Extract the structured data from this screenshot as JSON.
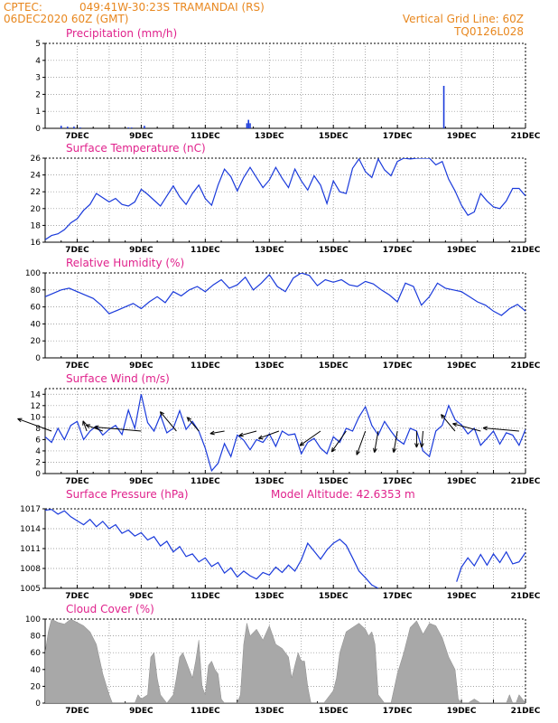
{
  "header": {
    "source": "CPTEC:",
    "location": "049:41W-30:23S   TRAMANDAI (RS)",
    "run": "06DEC2020 60Z (GMT)",
    "grid_note": "Vertical Grid Line: 60Z",
    "model_code": "TQ0126L028"
  },
  "colors": {
    "header": "#e8871e",
    "panel_title": "#e0228c",
    "line": "#1a3adb",
    "cloud": "#a8a8a8"
  },
  "x_tick_labels": [
    "7DEC",
    "9DEC",
    "11DEC",
    "13DEC",
    "15DEC",
    "17DEC",
    "19DEC",
    "21DEC"
  ],
  "chart_data": [
    {
      "id": "precip",
      "type": "bar",
      "title": "Precipitation (mm/h)",
      "ylim": [
        0,
        5
      ],
      "yticks": [
        0,
        1,
        2,
        3,
        4,
        5
      ],
      "x": [
        6.5,
        6.7,
        6.9,
        7.1,
        8.6,
        8.7,
        9.1,
        12.3,
        12.35,
        12.4,
        18.45
      ],
      "values": [
        0.15,
        0.1,
        0.1,
        0.05,
        0.05,
        0.05,
        0.15,
        0.3,
        0.5,
        0.3,
        2.5
      ]
    },
    {
      "id": "temp",
      "type": "line",
      "title": "Surface Temperature (nC)",
      "ylim": [
        16,
        26
      ],
      "yticks": [
        16,
        18,
        20,
        22,
        24,
        26
      ],
      "x": [
        6.0,
        6.2,
        6.4,
        6.6,
        6.8,
        7.0,
        7.2,
        7.4,
        7.6,
        7.8,
        8.0,
        8.2,
        8.4,
        8.6,
        8.8,
        9.0,
        9.2,
        9.4,
        9.6,
        9.8,
        10.0,
        10.2,
        10.4,
        10.6,
        10.8,
        11.0,
        11.2,
        11.4,
        11.6,
        11.8,
        12.0,
        12.2,
        12.4,
        12.6,
        12.8,
        13.0,
        13.2,
        13.4,
        13.6,
        13.8,
        14.0,
        14.2,
        14.4,
        14.6,
        14.8,
        15.0,
        15.2,
        15.4,
        15.6,
        15.8,
        16.0,
        16.2,
        16.4,
        16.6,
        16.8,
        17.0,
        17.2,
        17.4,
        17.6,
        17.8,
        18.0,
        18.2,
        18.4,
        18.6,
        18.8,
        19.0,
        19.2,
        19.4,
        19.6,
        19.8,
        20.0,
        20.2,
        20.4,
        20.6,
        20.8,
        21.0
      ],
      "y": [
        16.3,
        16.8,
        17.0,
        17.5,
        18.3,
        18.8,
        19.8,
        20.5,
        21.8,
        21.3,
        20.8,
        21.2,
        20.5,
        20.3,
        20.8,
        22.3,
        21.7,
        21.0,
        20.3,
        21.5,
        22.7,
        21.4,
        20.5,
        21.8,
        22.8,
        21.2,
        20.4,
        22.8,
        24.7,
        23.8,
        22.1,
        23.7,
        24.9,
        23.7,
        22.5,
        23.4,
        24.9,
        23.6,
        22.5,
        24.7,
        23.3,
        22.2,
        23.9,
        22.8,
        20.6,
        23.3,
        22.0,
        21.8,
        24.8,
        25.9,
        24.4,
        23.7,
        25.9,
        24.6,
        23.9,
        25.6,
        26.0,
        25.9,
        26.0,
        26.0,
        26.0,
        25.2,
        25.6,
        23.5,
        22.1,
        20.4,
        19.2,
        19.6,
        21.8,
        20.9,
        20.2,
        20.0,
        20.9,
        22.4,
        22.4,
        21.5
      ]
    },
    {
      "id": "rh",
      "type": "line",
      "title": "Relative Humidity (%)",
      "ylim": [
        0,
        100
      ],
      "yticks": [
        0,
        20,
        40,
        60,
        80,
        100
      ],
      "x": [
        6.0,
        6.25,
        6.5,
        6.75,
        7.0,
        7.25,
        7.5,
        7.75,
        8.0,
        8.25,
        8.5,
        8.75,
        9.0,
        9.25,
        9.5,
        9.75,
        10.0,
        10.25,
        10.5,
        10.75,
        11.0,
        11.25,
        11.5,
        11.75,
        12.0,
        12.25,
        12.5,
        12.75,
        13.0,
        13.25,
        13.5,
        13.75,
        14.0,
        14.25,
        14.5,
        14.75,
        15.0,
        15.25,
        15.5,
        15.75,
        16.0,
        16.25,
        16.5,
        16.75,
        17.0,
        17.25,
        17.5,
        17.75,
        18.0,
        18.25,
        18.5,
        18.75,
        19.0,
        19.25,
        19.5,
        19.75,
        20.0,
        20.25,
        20.5,
        20.75,
        21.0
      ],
      "y": [
        72,
        76,
        80,
        82,
        78,
        74,
        70,
        62,
        52,
        56,
        60,
        64,
        58,
        66,
        72,
        65,
        78,
        73,
        80,
        84,
        78,
        86,
        92,
        82,
        86,
        95,
        80,
        88,
        98,
        84,
        78,
        94,
        100,
        97,
        85,
        92,
        89,
        92,
        86,
        84,
        90,
        87,
        80,
        74,
        66,
        88,
        84,
        62,
        72,
        88,
        82,
        80,
        78,
        72,
        66,
        62,
        55,
        50,
        58,
        63,
        55
      ]
    },
    {
      "id": "wind",
      "type": "line",
      "title": "Surface Wind (m/s)",
      "ylim": [
        0,
        15
      ],
      "yticks": [
        0,
        2,
        4,
        6,
        8,
        10,
        12,
        14
      ],
      "x": [
        6.0,
        6.2,
        6.4,
        6.6,
        6.8,
        7.0,
        7.2,
        7.4,
        7.6,
        7.8,
        8.0,
        8.2,
        8.4,
        8.6,
        8.8,
        9.0,
        9.2,
        9.4,
        9.6,
        9.8,
        10.0,
        10.2,
        10.4,
        10.6,
        10.8,
        11.0,
        11.2,
        11.4,
        11.6,
        11.8,
        12.0,
        12.2,
        12.4,
        12.6,
        12.8,
        13.0,
        13.2,
        13.4,
        13.6,
        13.8,
        14.0,
        14.2,
        14.4,
        14.6,
        14.8,
        15.0,
        15.2,
        15.4,
        15.6,
        15.8,
        16.0,
        16.2,
        16.4,
        16.6,
        16.8,
        17.0,
        17.2,
        17.4,
        17.6,
        17.8,
        18.0,
        18.2,
        18.4,
        18.6,
        18.8,
        19.0,
        19.2,
        19.4,
        19.6,
        19.8,
        20.0,
        20.2,
        20.4,
        20.6,
        20.8,
        21.0
      ],
      "y": [
        6.5,
        5.5,
        8.0,
        6.0,
        8.5,
        9.2,
        6.0,
        7.5,
        8.4,
        6.8,
        7.8,
        8.5,
        6.9,
        11.2,
        8.0,
        14.0,
        9.0,
        7.5,
        10.3,
        7.2,
        8.0,
        11.1,
        7.8,
        9.2,
        7.5,
        4.5,
        0.5,
        1.8,
        5.3,
        3.0,
        6.8,
        5.9,
        4.2,
        6.0,
        5.5,
        7.0,
        4.8,
        7.5,
        6.8,
        7.0,
        3.5,
        5.5,
        6.2,
        4.5,
        3.5,
        6.5,
        5.5,
        8.0,
        7.5,
        10.0,
        11.8,
        8.5,
        6.8,
        9.2,
        7.5,
        6.0,
        5.2,
        8.0,
        7.5,
        4.0,
        3.0,
        7.5,
        8.5,
        12.0,
        9.5,
        8.6,
        7.0,
        8.0,
        5.0,
        6.2,
        7.5,
        5.2,
        7.2,
        6.8,
        5.0,
        7.8
      ],
      "arrows": [
        {
          "x": 6.2,
          "dir_deg": 290,
          "len": 1.0
        },
        {
          "x": 7.3,
          "dir_deg": 340,
          "len": 0.3
        },
        {
          "x": 7.8,
          "dir_deg": 290,
          "len": 0.5
        },
        {
          "x": 9.0,
          "dir_deg": 275,
          "len": 1.3
        },
        {
          "x": 10.1,
          "dir_deg": 320,
          "len": 0.7
        },
        {
          "x": 10.8,
          "dir_deg": 320,
          "len": 0.5
        },
        {
          "x": 11.6,
          "dir_deg": 260,
          "len": 0.4
        },
        {
          "x": 12.6,
          "dir_deg": 255,
          "len": 0.5
        },
        {
          "x": 13.3,
          "dir_deg": 250,
          "len": 0.6
        },
        {
          "x": 14.6,
          "dir_deg": 235,
          "len": 0.7
        },
        {
          "x": 15.4,
          "dir_deg": 215,
          "len": 0.7
        },
        {
          "x": 16.0,
          "dir_deg": 200,
          "len": 0.7
        },
        {
          "x": 16.4,
          "dir_deg": 190,
          "len": 0.6
        },
        {
          "x": 17.0,
          "dir_deg": 190,
          "len": 0.6
        },
        {
          "x": 17.6,
          "dir_deg": 180,
          "len": 0.45
        },
        {
          "x": 17.8,
          "dir_deg": 185,
          "len": 0.45
        },
        {
          "x": 18.8,
          "dir_deg": 320,
          "len": 0.6
        },
        {
          "x": 19.6,
          "dir_deg": 285,
          "len": 0.8
        },
        {
          "x": 20.8,
          "dir_deg": 275,
          "len": 1.0
        }
      ]
    },
    {
      "id": "pres",
      "type": "line",
      "title": "Surface Pressure (hPa)",
      "annotation": "Model Altitude: 42.6353  m",
      "ylim": [
        1005,
        1017
      ],
      "yticks": [
        1005,
        1008,
        1011,
        1014,
        1017
      ],
      "x": [
        6.0,
        6.2,
        6.4,
        6.6,
        6.8,
        7.0,
        7.2,
        7.4,
        7.6,
        7.8,
        8.0,
        8.2,
        8.4,
        8.6,
        8.8,
        9.0,
        9.2,
        9.4,
        9.6,
        9.8,
        10.0,
        10.2,
        10.4,
        10.6,
        10.8,
        11.0,
        11.2,
        11.4,
        11.6,
        11.8,
        12.0,
        12.2,
        12.4,
        12.6,
        12.8,
        13.0,
        13.2,
        13.4,
        13.6,
        13.8,
        14.0,
        14.2,
        14.4,
        14.6,
        14.8,
        15.0,
        15.2,
        15.4,
        15.6,
        15.8,
        16.0,
        16.2,
        16.4
      ],
      "y": [
        1016.8,
        1016.9,
        1016.2,
        1016.7,
        1015.8,
        1015.2,
        1014.6,
        1015.4,
        1014.3,
        1015.1,
        1014.0,
        1014.6,
        1013.3,
        1013.8,
        1012.9,
        1013.4,
        1012.3,
        1012.8,
        1011.4,
        1012.1,
        1010.5,
        1011.3,
        1009.8,
        1010.2,
        1009.0,
        1009.6,
        1008.3,
        1008.9,
        1007.3,
        1008.1,
        1006.7,
        1007.6,
        1006.9,
        1006.4,
        1007.4,
        1007.0,
        1008.2,
        1007.4,
        1008.5,
        1007.6,
        1009.3,
        1011.8,
        1010.6,
        1009.4,
        1010.8,
        1011.8,
        1012.4,
        1011.5,
        1009.6,
        1007.6,
        1006.6,
        1005.5,
        1005.0
      ],
      "x2": [
        18.85,
        19.0,
        19.2,
        19.4,
        19.6,
        19.8,
        20.0,
        20.2,
        20.4,
        20.6,
        20.8,
        21.0
      ],
      "y2": [
        1006.0,
        1008.2,
        1009.6,
        1008.4,
        1010.1,
        1008.5,
        1010.2,
        1008.9,
        1010.5,
        1008.7,
        1009.0,
        1010.4
      ]
    },
    {
      "id": "cloud",
      "type": "area",
      "title": "Cloud Cover (%)",
      "ylim": [
        0,
        100
      ],
      "yticks": [
        0,
        20,
        40,
        60,
        80,
        100
      ],
      "x": [
        6.0,
        6.1,
        6.2,
        6.4,
        6.6,
        6.8,
        7.0,
        7.2,
        7.4,
        7.6,
        7.8,
        8.0,
        8.1,
        8.15,
        8.3,
        8.8,
        8.9,
        9.0,
        9.2,
        9.3,
        9.4,
        9.5,
        9.6,
        9.7,
        9.8,
        9.9,
        10.0,
        10.1,
        10.2,
        10.3,
        10.4,
        10.5,
        10.6,
        10.7,
        10.8,
        10.9,
        11.0,
        11.1,
        11.2,
        11.3,
        11.4,
        11.5,
        11.6,
        11.8,
        12.0,
        12.1,
        12.2,
        12.3,
        12.4,
        12.6,
        12.8,
        13.0,
        13.2,
        13.4,
        13.6,
        13.7,
        13.8,
        13.9,
        14.0,
        14.1,
        14.2,
        14.3,
        14.5,
        14.7,
        14.8,
        14.9,
        15.0,
        15.1,
        15.2,
        15.4,
        15.6,
        15.8,
        16.0,
        16.1,
        16.2,
        16.3,
        16.4,
        16.6,
        16.8,
        17.0,
        17.2,
        17.4,
        17.6,
        17.8,
        18.0,
        18.2,
        18.4,
        18.6,
        18.8,
        18.9,
        19.0,
        19.2,
        19.4,
        19.6,
        19.8,
        20.0,
        20.2,
        20.4,
        20.5,
        20.6,
        20.7,
        20.8,
        20.9,
        21.0
      ],
      "y": [
        60,
        85,
        100,
        96,
        94,
        100,
        96,
        92,
        85,
        70,
        35,
        10,
        0,
        0,
        0,
        0,
        10,
        5,
        10,
        55,
        60,
        30,
        10,
        5,
        0,
        5,
        10,
        30,
        55,
        60,
        50,
        40,
        30,
        50,
        75,
        20,
        10,
        45,
        50,
        40,
        35,
        5,
        0,
        0,
        0,
        10,
        70,
        95,
        80,
        88,
        75,
        92,
        70,
        65,
        55,
        30,
        45,
        60,
        50,
        50,
        20,
        0,
        0,
        0,
        5,
        10,
        15,
        30,
        60,
        85,
        90,
        95,
        88,
        80,
        85,
        70,
        10,
        0,
        0,
        35,
        60,
        90,
        98,
        82,
        95,
        92,
        78,
        55,
        40,
        5,
        0,
        0,
        5,
        0,
        0,
        0,
        0,
        0,
        10,
        0,
        0,
        10,
        5,
        0
      ]
    }
  ]
}
